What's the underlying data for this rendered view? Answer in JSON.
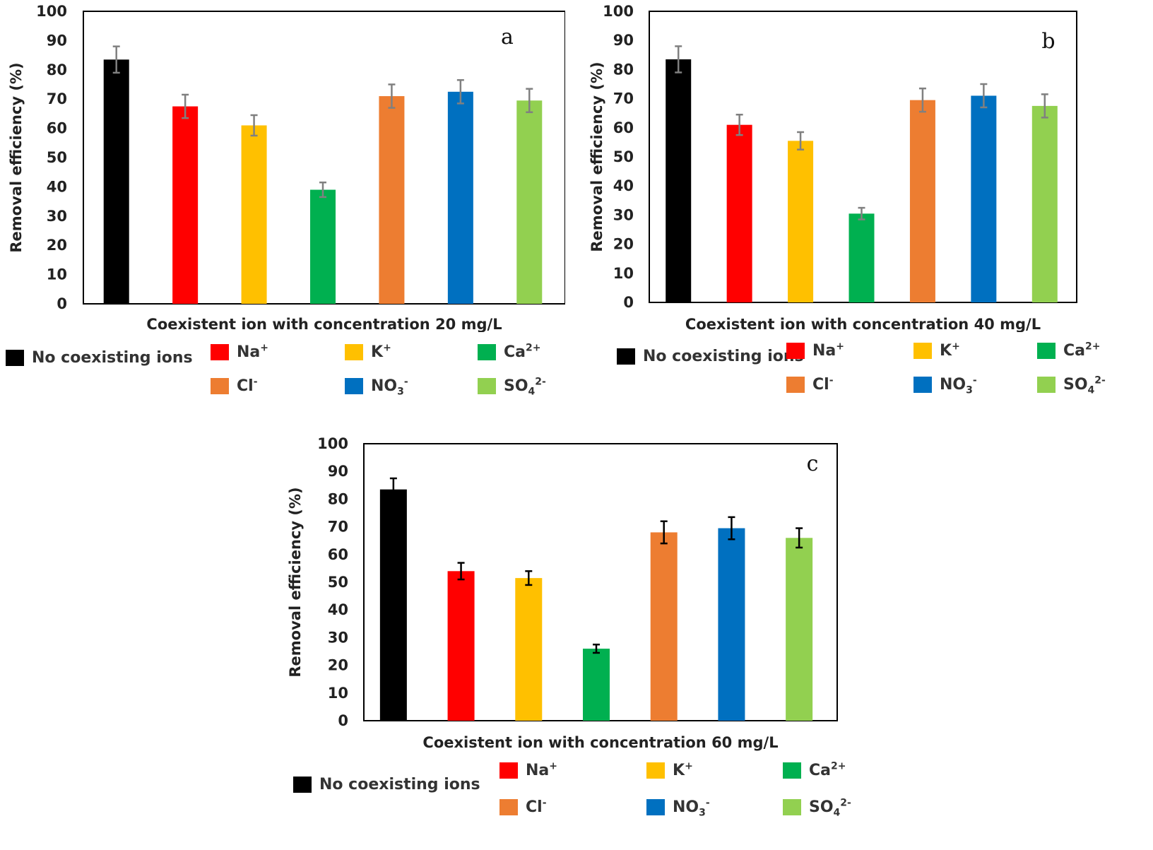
{
  "colors": [
    "#000000",
    "#ff0000",
    "#ffc000",
    "#00b050",
    "#ed7d31",
    "#0070c0",
    "#92d050"
  ],
  "legend_items": [
    {
      "text": "No coexisting ions",
      "sup": "",
      "sub": "",
      "sup2": ""
    },
    {
      "text": "Na",
      "sup": "+",
      "sub": "",
      "sup2": ""
    },
    {
      "text": "K",
      "sup": "+",
      "sub": "",
      "sup2": ""
    },
    {
      "text": "Ca",
      "sup": "2+",
      "sub": "",
      "sup2": ""
    },
    {
      "text": "Cl",
      "sup": "-",
      "sub": "",
      "sup2": ""
    },
    {
      "text": "NO",
      "sup": "",
      "sub": "3",
      "sup2": "-"
    },
    {
      "text": "SO",
      "sup": "",
      "sub": "4",
      "sup2": "2-"
    }
  ],
  "chart_data": [
    {
      "type": "bar",
      "panel_label": "a",
      "categories": [
        "No coexisting ions",
        "Na+",
        "K+",
        "Ca2+",
        "Cl-",
        "NO3-",
        "SO42-"
      ],
      "values": [
        83.5,
        67.5,
        61,
        39,
        71,
        72.5,
        69.5
      ],
      "errors": [
        4.5,
        4,
        3.5,
        2.5,
        4,
        4,
        4
      ],
      "xlabel": "Coexistent ion with concentration 20 mg/L",
      "ylabel": "Removal efficiency (%)",
      "ylim": [
        0,
        100
      ],
      "yticks": [
        0,
        10,
        20,
        30,
        40,
        50,
        60,
        70,
        80,
        90,
        100
      ],
      "grid": false,
      "error_bar_color": "#808080"
    },
    {
      "type": "bar",
      "panel_label": "b",
      "categories": [
        "No coexisting ions",
        "Na+",
        "K+",
        "Ca2+",
        "Cl-",
        "NO3-",
        "SO42-"
      ],
      "values": [
        83.5,
        61,
        55.5,
        30.5,
        69.5,
        71,
        67.5
      ],
      "errors": [
        4.5,
        3.5,
        3,
        2,
        4,
        4,
        4
      ],
      "xlabel": "Coexistent ion with concentration 40 mg/L",
      "ylabel": "Removal efficiency (%)",
      "ylim": [
        0,
        100
      ],
      "yticks": [
        0,
        10,
        20,
        30,
        40,
        50,
        60,
        70,
        80,
        90,
        100
      ],
      "grid": false,
      "error_bar_color": "#808080"
    },
    {
      "type": "bar",
      "panel_label": "c",
      "categories": [
        "No coexisting ions",
        "Na+",
        "K+",
        "Ca2+",
        "Cl-",
        "NO3-",
        "SO42-"
      ],
      "values": [
        83.5,
        54,
        51.5,
        26,
        68,
        69.5,
        66
      ],
      "errors": [
        4,
        3,
        2.5,
        1.5,
        4,
        4,
        3.5
      ],
      "xlabel": "Coexistent ion with concentration 60 mg/L",
      "ylabel": "Removal efficiency (%)",
      "ylim": [
        0,
        100
      ],
      "yticks": [
        0,
        10,
        20,
        30,
        40,
        50,
        60,
        70,
        80,
        90,
        100
      ],
      "grid": false,
      "error_bar_color": "#000000"
    }
  ]
}
